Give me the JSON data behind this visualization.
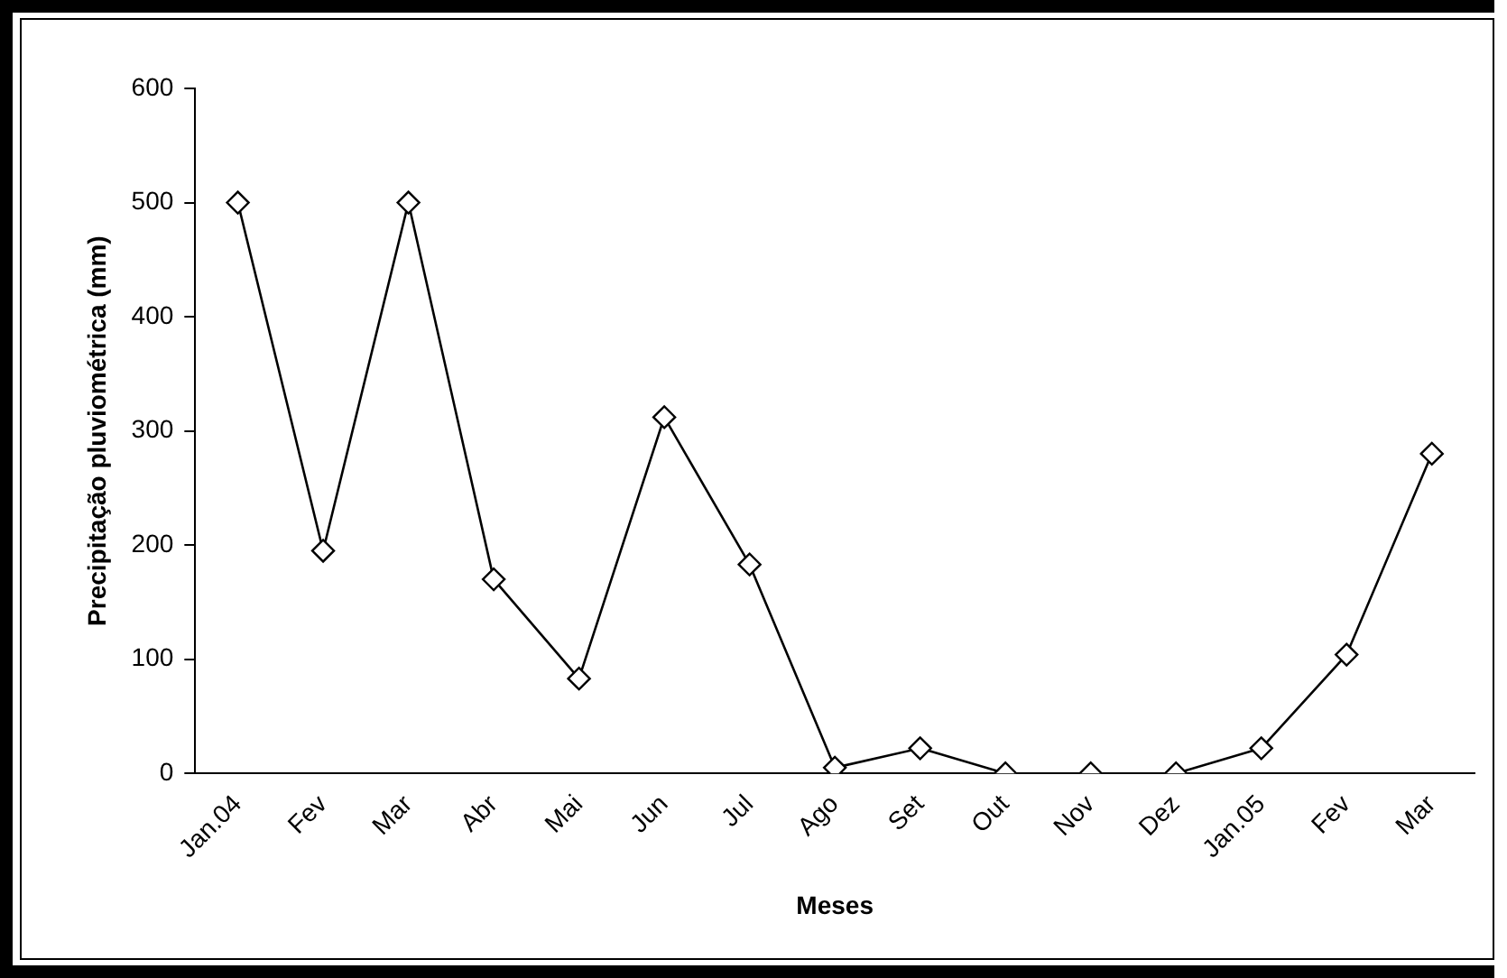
{
  "chart_data": {
    "type": "line",
    "xlabel": "Meses",
    "ylabel": "Precipitação pluviométrica (mm)",
    "categories": [
      "Jan.04",
      "Fev",
      "Mar",
      "Abr",
      "Mai",
      "Jun",
      "Jul",
      "Ago",
      "Set",
      "Out",
      "Nov",
      "Dez",
      "Jan.05",
      "Fev",
      "Mar"
    ],
    "series": [
      {
        "color": "#000000",
        "values": [
          500,
          195,
          500,
          170,
          83,
          312,
          183,
          5,
          22,
          0,
          0,
          0,
          22,
          104,
          280
        ]
      }
    ],
    "ylim": [
      0,
      600
    ],
    "yticks": [
      0,
      100,
      200,
      300,
      400,
      500,
      600
    ],
    "grid": false,
    "legend": false,
    "marker": "diamond",
    "line_style": "solid"
  }
}
